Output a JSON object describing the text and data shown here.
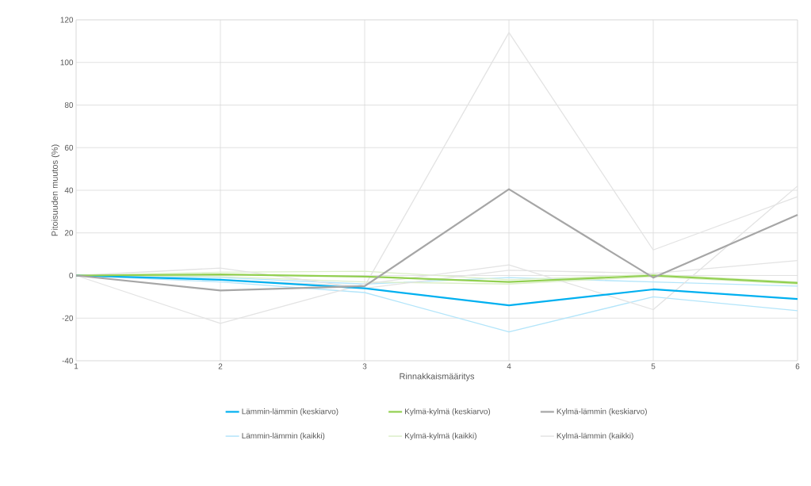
{
  "chart_data": {
    "type": "line",
    "xlabel": "Rinnakkaismääritys",
    "ylabel": "Pitoisuuden muutos (%)",
    "x": [
      1,
      2,
      3,
      4,
      5,
      6
    ],
    "xlim": [
      1,
      6
    ],
    "xticks": [
      1,
      2,
      3,
      4,
      5,
      6
    ],
    "ylim": [
      -40,
      120
    ],
    "yticks": [
      -40,
      -20,
      0,
      20,
      40,
      60,
      80,
      100,
      120
    ],
    "grid": true,
    "legend": "bottom",
    "marker": "none",
    "line_style": "solid",
    "series": [
      {
        "name": "Lämmin-lämmin (keskiarvo)",
        "color": "#00b0f0",
        "values": [
          0,
          -2,
          -6,
          -14,
          -6.5,
          -11
        ]
      },
      {
        "name": "Kylmä-kylmä (keskiarvo)",
        "color": "#92d050",
        "values": [
          0,
          0.5,
          -0.5,
          -3,
          0,
          -3.5
        ]
      },
      {
        "name": "Kylmä-lämmin (keskiarvo)",
        "color": "#a6a6a6",
        "values": [
          0,
          -7,
          -5,
          40.5,
          -1,
          28.5
        ]
      },
      {
        "name": "Lämmin-lämmin (kaikki)",
        "color": "#b3e5fa",
        "values": [
          0,
          -1,
          -4,
          -1,
          -3,
          -5
        ]
      },
      {
        "name": "Kylmä-kylmä (kaikki)",
        "color": "#dcefc9",
        "values": [
          0,
          1.5,
          2,
          -2,
          0.5,
          -3
        ]
      },
      {
        "name": "Kylmä-lämmin (kaikki)",
        "color": "#e3e3e3",
        "values": [
          0,
          -2,
          -5,
          114,
          12,
          37
        ]
      },
      {
        "color": "#b3e5fa",
        "values": [
          0,
          -3,
          -8,
          -26.5,
          -10,
          -16.5
        ]
      },
      {
        "color": "#dcefc9",
        "values": [
          0,
          -0.5,
          -3,
          -4,
          -0.5,
          -4
        ]
      },
      {
        "color": "#e3e3e3",
        "values": [
          0,
          -22.5,
          -4,
          5,
          -16,
          42
        ]
      },
      {
        "color": "#e3e3e3",
        "values": [
          0,
          3.5,
          -6,
          2.5,
          1,
          7
        ]
      }
    ]
  }
}
